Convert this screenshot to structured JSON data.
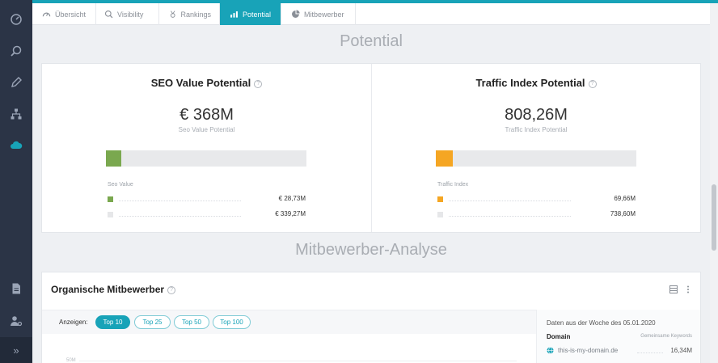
{
  "tabs": [
    {
      "label": "Übersicht",
      "icon": "speedometer-icon"
    },
    {
      "label": "Visibility",
      "icon": "magnifier-icon"
    },
    {
      "label": "Rankings",
      "icon": "medal-icon"
    },
    {
      "label": "Potential",
      "icon": "bar-chart-icon",
      "active": true
    },
    {
      "label": "Mitbewerber",
      "icon": "pie-chart-icon"
    }
  ],
  "sidebar": {
    "icons": [
      "speedometer-icon",
      "search-icon",
      "pencil-icon",
      "sitemap-icon",
      "cloud-icon",
      "document-icon",
      "users-settings-icon"
    ],
    "active_icon": "cloud-icon",
    "collapse_label": "»"
  },
  "potential": {
    "section_title": "Potential",
    "seo": {
      "title": "SEO Value Potential",
      "value": "€ 368M",
      "sub_label": "Seo Value Potential",
      "fill_fraction": 0.078,
      "color": "#7aa84f",
      "legend_head": "Seo Value",
      "legend": [
        {
          "value": "€ 28,73M",
          "color": "#7aa84f"
        },
        {
          "value": "€ 339,27M",
          "color": "#e6e7e9"
        }
      ]
    },
    "traffic": {
      "title": "Traffic Index Potential",
      "value": "808,26M",
      "sub_label": "Traffic Index Potential",
      "fill_fraction": 0.086,
      "color": "#f5a623",
      "legend_head": "Traffic Index",
      "legend": [
        {
          "value": "69,66M",
          "color": "#f5a623"
        },
        {
          "value": "738,60M",
          "color": "#e6e7e9"
        }
      ]
    }
  },
  "competitors": {
    "section_title": "Mitbewerber-Analyse",
    "card_title": "Organische Mitbewerber",
    "filter_label": "Anzeigen:",
    "filters": [
      "Top 10",
      "Top 25",
      "Top 50",
      "Top 100"
    ],
    "active_filter": "Top 10",
    "axis_tick": "50M",
    "side": {
      "date_label": "Daten aus der Woche des 05.01.2020",
      "domain_header": "Domain",
      "keywords_header": "Gemeinsame Keywords",
      "rows": [
        {
          "domain": "this-is-my-domain.de",
          "value": "16,34M"
        }
      ]
    }
  },
  "colors": {
    "accent": "#18a3b8",
    "sidebar": "#2b3446"
  }
}
